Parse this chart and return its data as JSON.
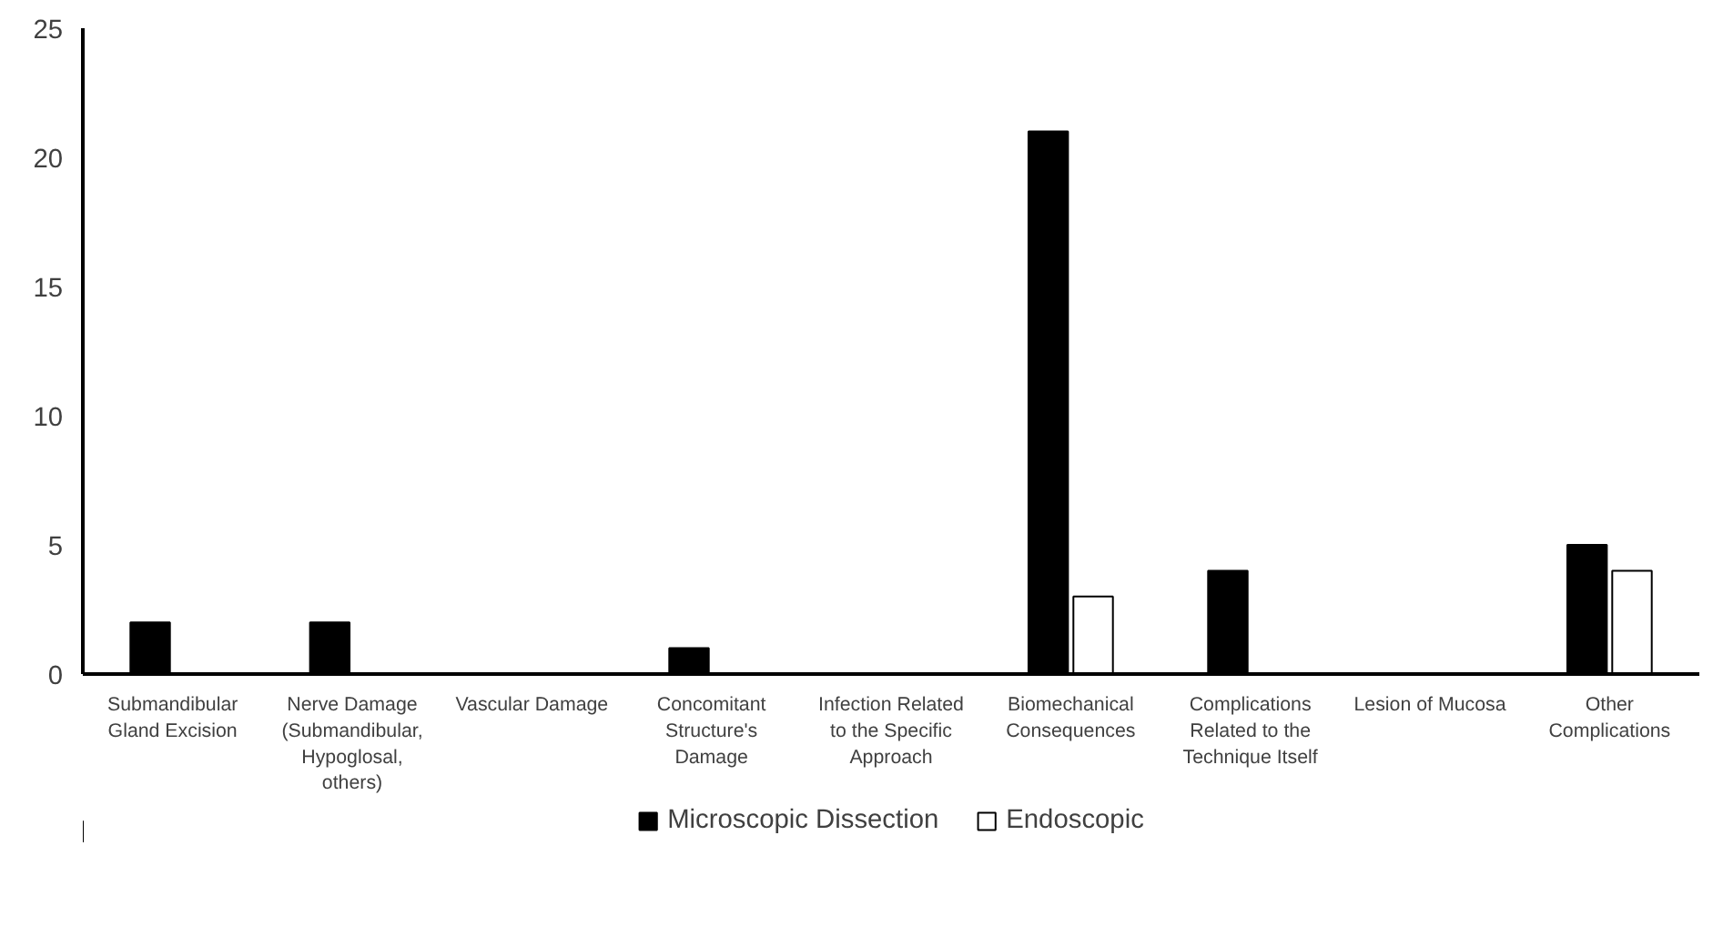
{
  "chart_data": {
    "type": "bar",
    "categories": [
      "Submandibular\nGland Excision",
      "Nerve Damage\n(Submandibular,\nHypoglosal,\nothers)",
      "Vascular Damage",
      "Concomitant\nStructure's\nDamage",
      "Infection Related\nto the Specific\nApproach",
      "Biomechanical\nConsequences",
      "Complications\nRelated to the\nTechnique Itself",
      "Lesion of Mucosa",
      "Other\nComplications"
    ],
    "series": [
      {
        "name": "Microscopic Dissection",
        "color": "#000000",
        "values": [
          2,
          2,
          0,
          1,
          0,
          21,
          4,
          0,
          5
        ]
      },
      {
        "name": "Endoscopic",
        "color": "#ffffff",
        "values": [
          0,
          0,
          0,
          0,
          0,
          3,
          0,
          0,
          4
        ]
      }
    ],
    "ylim": [
      0,
      25
    ],
    "yticks": [
      0,
      5,
      10,
      15,
      20,
      25
    ],
    "grid": false,
    "legend": "bottom"
  }
}
